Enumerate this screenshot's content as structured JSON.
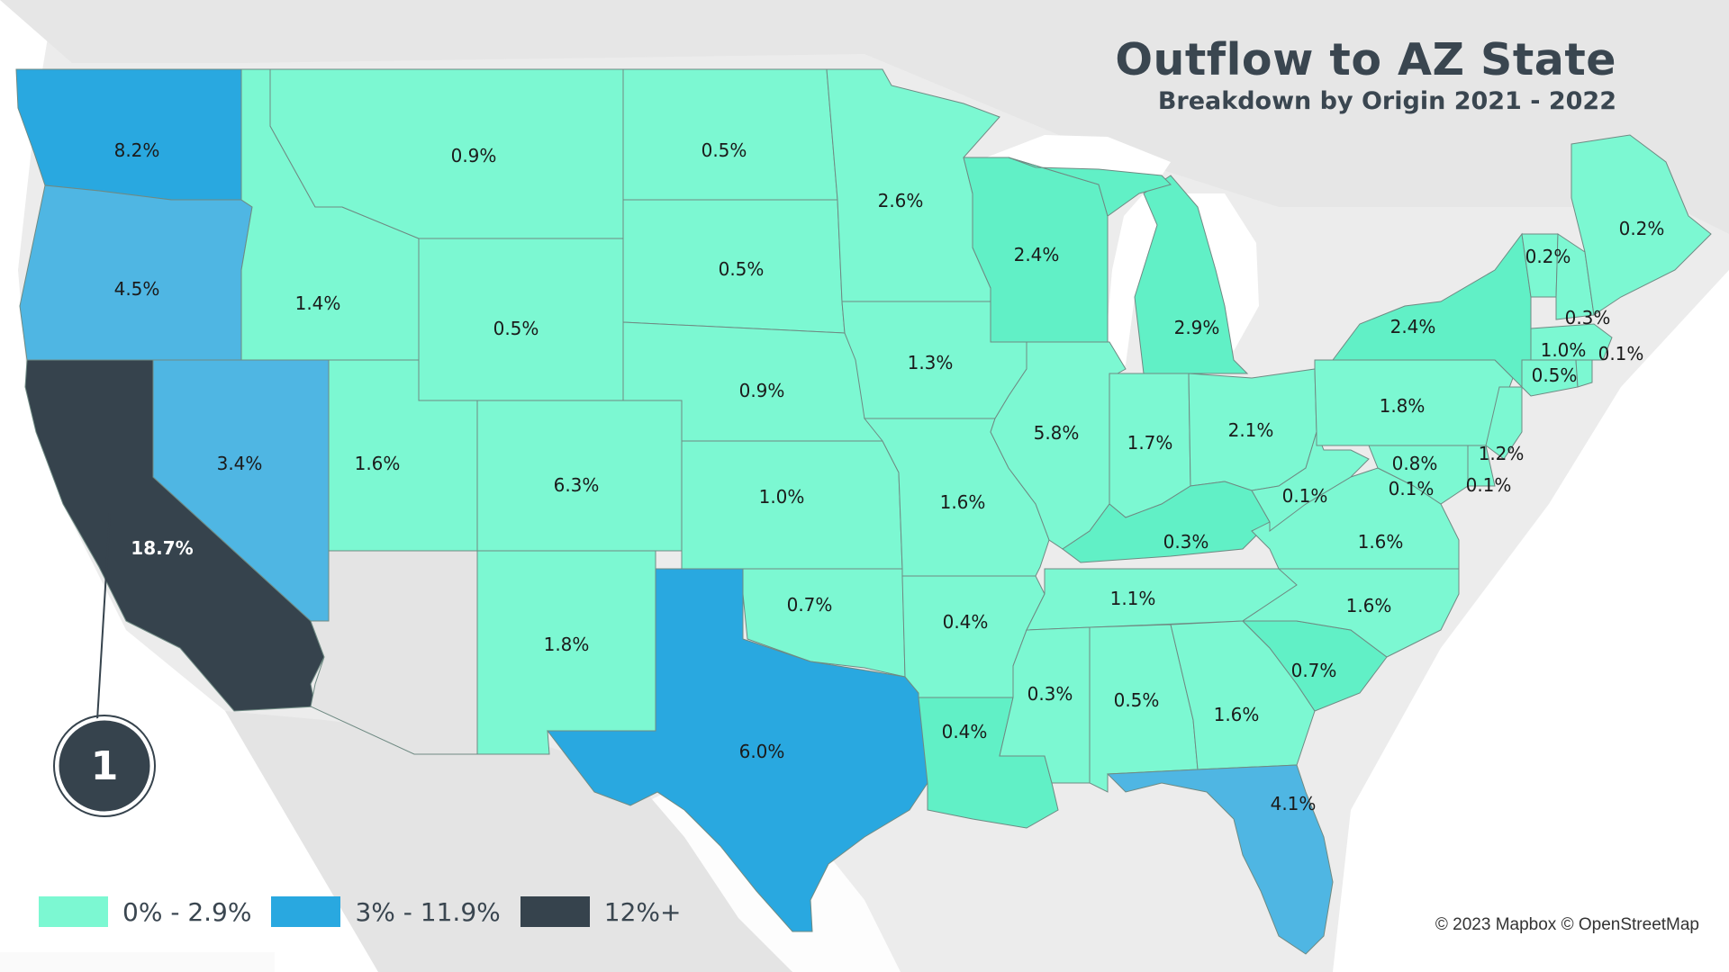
{
  "title": "Outflow to AZ State",
  "subtitle": "Breakdown by Origin 2021 - 2022",
  "attribution": "© 2023 Mapbox © OpenStreetMap",
  "marker_label": "1",
  "colors": {
    "low": "#7cf8d2",
    "mid": "#29a8e0",
    "high": "#36434d",
    "target": "#e4e4e4",
    "background": "#ececec"
  },
  "legend": [
    {
      "label": "0% - 2.9%",
      "color": "#7cf8d2"
    },
    {
      "label": "3% - 11.9%",
      "color": "#29a8e0"
    },
    {
      "label": "12%+",
      "color": "#36434d"
    }
  ],
  "states": [
    {
      "value": "8.2%"
    },
    {
      "value": "4.5%"
    },
    {
      "value": "18.7%"
    },
    {
      "value": "3.4%"
    },
    {
      "value": "0.9%"
    },
    {
      "value": "1.4%"
    },
    {
      "value": "0.5%"
    },
    {
      "value": "1.6%"
    },
    {
      "value": "6.3%"
    },
    {
      "value": "1.8%"
    },
    {
      "value": "0.5%"
    },
    {
      "value": "0.5%"
    },
    {
      "value": "0.9%"
    },
    {
      "value": "1.0%"
    },
    {
      "value": "0.7%"
    },
    {
      "value": "6.0%"
    },
    {
      "value": "2.6%"
    },
    {
      "value": "1.3%"
    },
    {
      "value": "1.6%"
    },
    {
      "value": "0.4%"
    },
    {
      "value": "0.4%"
    },
    {
      "value": "2.4%"
    },
    {
      "value": "5.8%"
    },
    {
      "value": "2.9%"
    },
    {
      "value": "1.7%"
    },
    {
      "value": "2.1%"
    },
    {
      "value": "0.3%"
    },
    {
      "value": "1.1%"
    },
    {
      "value": "0.3%"
    },
    {
      "value": "0.5%"
    },
    {
      "value": "1.6%"
    },
    {
      "value": "4.1%"
    },
    {
      "value": "0.7%"
    },
    {
      "value": "1.6%"
    },
    {
      "value": "1.6%"
    },
    {
      "value": "0.1%"
    },
    {
      "value": "1.8%"
    },
    {
      "value": "2.4%"
    },
    {
      "value": "0.2%"
    },
    {
      "value": "0.2%"
    },
    {
      "value": "0.3%"
    },
    {
      "value": "1.0%"
    },
    {
      "value": "0.1%"
    },
    {
      "value": "0.5%"
    },
    {
      "value": "1.2%"
    },
    {
      "value": "0.8%"
    },
    {
      "value": "0.1%"
    },
    {
      "value": "0.1%"
    }
  ]
}
